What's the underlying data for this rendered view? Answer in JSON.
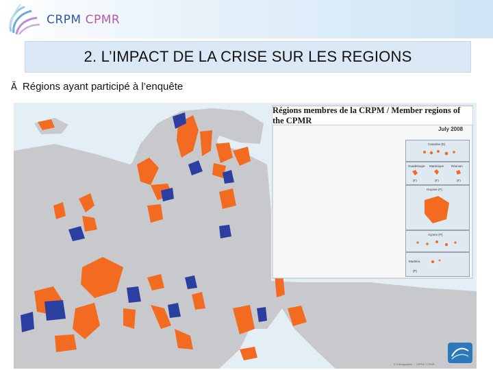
{
  "logo": {
    "crpm": "CRPM",
    "cpmr": "CPMR"
  },
  "slide": {
    "title": "2. L’IMPACT DE LA CRISE SUR LES REGIONS",
    "bullet_glyph": "Ä",
    "bullet_text": "Régions ayant participé à l’enquête"
  },
  "map": {
    "legend_title": "Régions membres de la CRPM / Member regions of the CPMR",
    "date": "July 2008",
    "insets": {
      "canarias": "Canarias (E)",
      "guadeloupe": "Guadeloupe",
      "martinique": "Martinique",
      "reunion": "Réunion",
      "f1": "(F)",
      "f2": "(F)",
      "f3": "(F)",
      "guyane": "Guyane (F)",
      "acores": "Açores (P)",
      "madeira": "Madeira",
      "p": "(P)"
    },
    "footnote": "© Cartographie ... CRPM / CPMR",
    "colors": {
      "member_orange": "#f26b21",
      "participant_blue": "#2b3fa0",
      "land_grey": "#c8c9cc",
      "sea": "#e4eef5"
    }
  }
}
